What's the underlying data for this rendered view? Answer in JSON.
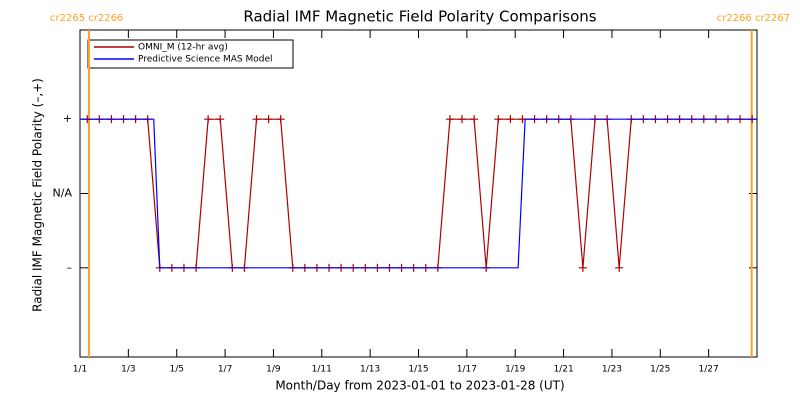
{
  "chart_data": {
    "type": "line",
    "title": "Radial IMF Magnetic Field Polarity Comparisons",
    "x_label": "Month/Day from 2023-01-01 to 2023-01-28 (UT)",
    "y_label": "Radial IMF Magnetic Field Polarity (–,+)",
    "xlim": [
      1,
      29
    ],
    "ylim": [
      -2.2,
      2.2
    ],
    "xticks": [
      {
        "value": 1,
        "label": "1/1"
      },
      {
        "value": 3,
        "label": "1/3"
      },
      {
        "value": 5,
        "label": "1/5"
      },
      {
        "value": 7,
        "label": "1/7"
      },
      {
        "value": 9,
        "label": "1/9"
      },
      {
        "value": 11,
        "label": "1/11"
      },
      {
        "value": 13,
        "label": "1/13"
      },
      {
        "value": 15,
        "label": "1/15"
      },
      {
        "value": 17,
        "label": "1/17"
      },
      {
        "value": 19,
        "label": "1/19"
      },
      {
        "value": 21,
        "label": "1/21"
      },
      {
        "value": 23,
        "label": "1/23"
      },
      {
        "value": 25,
        "label": "1/25"
      },
      {
        "value": 27,
        "label": "1/27"
      }
    ],
    "yticks": [
      {
        "value": 1,
        "label": "+"
      },
      {
        "value": 0,
        "label": "N/A"
      },
      {
        "value": -1,
        "label": "–"
      }
    ],
    "boundary_color": "#ffa020",
    "boundaries": [
      {
        "x": 1.37,
        "label": "cr2265 cr2266"
      },
      {
        "x": 28.78,
        "label": "cr2266 cr2267"
      }
    ],
    "legend": "top-left",
    "series": [
      {
        "name": "OMNI_M (12-hr avg)",
        "color": "#b00000",
        "marker": "plus",
        "x": [
          1.3,
          1.8,
          2.3,
          2.8,
          3.3,
          3.8,
          4.3,
          4.8,
          5.3,
          5.8,
          6.3,
          6.8,
          7.3,
          7.8,
          8.3,
          8.8,
          9.3,
          9.8,
          10.3,
          10.8,
          11.3,
          11.8,
          12.3,
          12.8,
          13.3,
          13.8,
          14.3,
          14.8,
          15.3,
          15.8,
          16.3,
          16.8,
          17.3,
          17.8,
          18.3,
          18.8,
          19.3,
          19.8,
          20.3,
          20.8,
          21.3,
          21.8,
          22.3,
          22.8,
          23.3,
          23.8,
          24.3,
          24.8,
          25.3,
          25.8,
          26.3,
          26.8,
          27.3,
          27.8,
          28.3,
          28.8
        ],
        "values": [
          1,
          1,
          1,
          1,
          1,
          1,
          -1,
          -1,
          -1,
          -1,
          1,
          1,
          -1,
          -1,
          1,
          1,
          1,
          -1,
          -1,
          -1,
          -1,
          -1,
          -1,
          -1,
          -1,
          -1,
          -1,
          -1,
          -1,
          -1,
          1,
          1,
          1,
          -1,
          1,
          1,
          1,
          1,
          1,
          1,
          1,
          -1,
          1,
          1,
          -1,
          1,
          1,
          1,
          1,
          1,
          1,
          1,
          1,
          1,
          1,
          1
        ]
      },
      {
        "name": "Predictive Science MAS Model",
        "color": "#0000ff",
        "x": [
          1,
          4.05,
          4.3,
          19.12,
          19.41,
          29
        ],
        "values": [
          1,
          1,
          -1,
          -1,
          1,
          1
        ]
      }
    ]
  }
}
